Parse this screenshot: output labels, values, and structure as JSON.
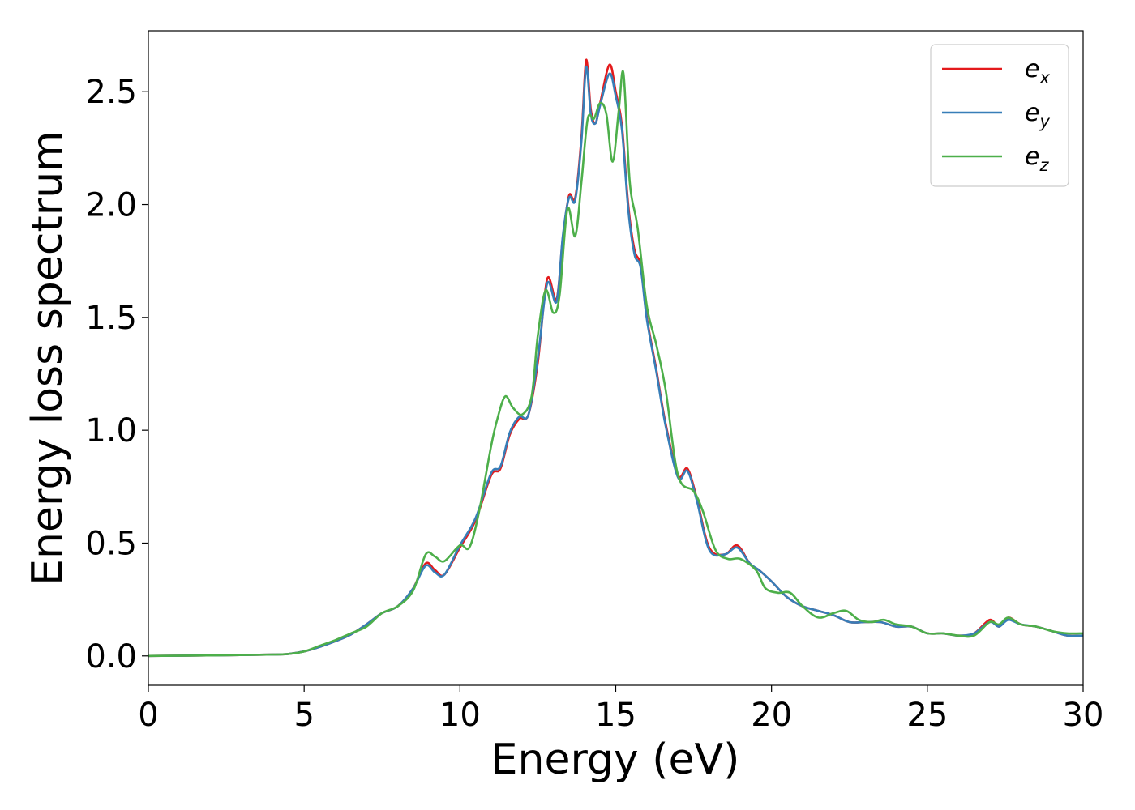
{
  "chart_data": {
    "type": "line",
    "title": "",
    "xlabel": "Energy (eV)",
    "ylabel": "Energy loss spectrum",
    "xlim": [
      0,
      30
    ],
    "ylim": [
      -0.13,
      2.77
    ],
    "xticks": [
      "0",
      "5",
      "10",
      "15",
      "20",
      "25",
      "30"
    ],
    "yticks": [
      "0.0",
      "0.5",
      "1.0",
      "1.5",
      "2.0",
      "2.5"
    ],
    "grid": false,
    "legend_position": "top-right",
    "series": [
      {
        "name": "e",
        "sub": "x",
        "color": "#e41a1c",
        "x": [
          0,
          2,
          4,
          4.5,
          5,
          5.5,
          6,
          6.5,
          7,
          7.5,
          8,
          8.5,
          8.9,
          9.2,
          9.5,
          10,
          10.5,
          11,
          11.3,
          11.6,
          11.9,
          12.2,
          12.5,
          12.8,
          13.1,
          13.3,
          13.5,
          13.7,
          13.9,
          14.05,
          14.2,
          14.35,
          14.5,
          14.8,
          15.0,
          15.2,
          15.4,
          15.6,
          15.8,
          16.0,
          16.3,
          16.6,
          17.0,
          17.3,
          17.6,
          18.0,
          18.5,
          18.9,
          19.3,
          19.6,
          20.0,
          20.5,
          21,
          21.5,
          22,
          22.5,
          23,
          23.5,
          24,
          24.5,
          25,
          25.5,
          26,
          26.5,
          27,
          27.3,
          27.6,
          28,
          28.5,
          29,
          29.5,
          30
        ],
        "y": [
          0.0,
          0.002,
          0.006,
          0.009,
          0.02,
          0.04,
          0.065,
          0.095,
          0.14,
          0.19,
          0.22,
          0.3,
          0.41,
          0.38,
          0.36,
          0.48,
          0.6,
          0.8,
          0.83,
          0.98,
          1.05,
          1.07,
          1.3,
          1.67,
          1.58,
          1.85,
          2.04,
          2.03,
          2.3,
          2.64,
          2.42,
          2.36,
          2.45,
          2.62,
          2.5,
          2.35,
          2.0,
          1.8,
          1.73,
          1.5,
          1.27,
          1.03,
          0.8,
          0.83,
          0.7,
          0.48,
          0.45,
          0.49,
          0.41,
          0.38,
          0.33,
          0.26,
          0.22,
          0.2,
          0.18,
          0.15,
          0.15,
          0.15,
          0.13,
          0.13,
          0.1,
          0.1,
          0.09,
          0.1,
          0.16,
          0.13,
          0.17,
          0.14,
          0.13,
          0.11,
          0.09,
          0.09
        ]
      },
      {
        "name": "e",
        "sub": "y",
        "color": "#377eb8",
        "x": [
          0,
          2,
          4,
          4.5,
          5,
          5.5,
          6,
          6.5,
          7,
          7.5,
          8,
          8.5,
          8.9,
          9.2,
          9.5,
          10,
          10.5,
          11,
          11.3,
          11.6,
          11.9,
          12.2,
          12.5,
          12.8,
          13.1,
          13.3,
          13.5,
          13.7,
          13.9,
          14.05,
          14.2,
          14.35,
          14.5,
          14.8,
          15.0,
          15.2,
          15.4,
          15.6,
          15.8,
          16.0,
          16.3,
          16.6,
          17.0,
          17.3,
          17.6,
          18.0,
          18.5,
          18.9,
          19.3,
          19.6,
          20.0,
          20.5,
          21,
          21.5,
          22,
          22.5,
          23,
          23.5,
          24,
          24.5,
          25,
          25.5,
          26,
          26.5,
          27,
          27.3,
          27.6,
          28,
          28.5,
          29,
          29.5,
          30
        ],
        "y": [
          0.0,
          0.002,
          0.006,
          0.009,
          0.02,
          0.04,
          0.065,
          0.095,
          0.14,
          0.19,
          0.22,
          0.3,
          0.4,
          0.37,
          0.36,
          0.49,
          0.61,
          0.81,
          0.84,
          0.99,
          1.06,
          1.07,
          1.32,
          1.65,
          1.57,
          1.86,
          2.03,
          2.02,
          2.28,
          2.61,
          2.4,
          2.36,
          2.44,
          2.58,
          2.48,
          2.33,
          1.98,
          1.78,
          1.72,
          1.49,
          1.26,
          1.02,
          0.79,
          0.82,
          0.69,
          0.47,
          0.45,
          0.48,
          0.41,
          0.38,
          0.33,
          0.26,
          0.22,
          0.2,
          0.18,
          0.15,
          0.15,
          0.15,
          0.13,
          0.13,
          0.1,
          0.1,
          0.09,
          0.1,
          0.15,
          0.13,
          0.16,
          0.14,
          0.13,
          0.11,
          0.09,
          0.09
        ]
      },
      {
        "name": "e",
        "sub": "z",
        "color": "#4daf4a",
        "x": [
          0,
          2,
          4,
          4.5,
          5,
          5.5,
          6,
          6.5,
          7,
          7.5,
          8,
          8.5,
          8.9,
          9.2,
          9.5,
          10,
          10.3,
          10.6,
          11,
          11.2,
          11.45,
          11.7,
          12.0,
          12.3,
          12.5,
          12.75,
          13.0,
          13.2,
          13.45,
          13.7,
          13.9,
          14.1,
          14.3,
          14.5,
          14.7,
          14.9,
          15.1,
          15.25,
          15.45,
          15.7,
          16.0,
          16.3,
          16.6,
          17.0,
          17.5,
          17.8,
          18.2,
          18.6,
          19.0,
          19.5,
          19.8,
          20.2,
          20.6,
          21,
          21.5,
          22,
          22.4,
          22.8,
          23.2,
          23.6,
          24,
          24.5,
          25,
          25.5,
          26,
          26.5,
          27,
          27.3,
          27.6,
          28,
          28.5,
          29,
          29.5,
          30
        ],
        "y": [
          0.0,
          0.002,
          0.006,
          0.009,
          0.02,
          0.045,
          0.07,
          0.1,
          0.13,
          0.19,
          0.22,
          0.29,
          0.45,
          0.44,
          0.42,
          0.49,
          0.48,
          0.63,
          0.93,
          1.05,
          1.15,
          1.1,
          1.07,
          1.15,
          1.42,
          1.62,
          1.52,
          1.6,
          1.98,
          1.86,
          2.1,
          2.38,
          2.38,
          2.45,
          2.4,
          2.19,
          2.42,
          2.58,
          2.1,
          1.9,
          1.55,
          1.38,
          1.18,
          0.8,
          0.73,
          0.64,
          0.47,
          0.43,
          0.43,
          0.38,
          0.3,
          0.28,
          0.28,
          0.22,
          0.17,
          0.19,
          0.2,
          0.16,
          0.15,
          0.16,
          0.14,
          0.13,
          0.1,
          0.1,
          0.09,
          0.09,
          0.15,
          0.14,
          0.17,
          0.14,
          0.13,
          0.11,
          0.1,
          0.1
        ]
      }
    ]
  }
}
